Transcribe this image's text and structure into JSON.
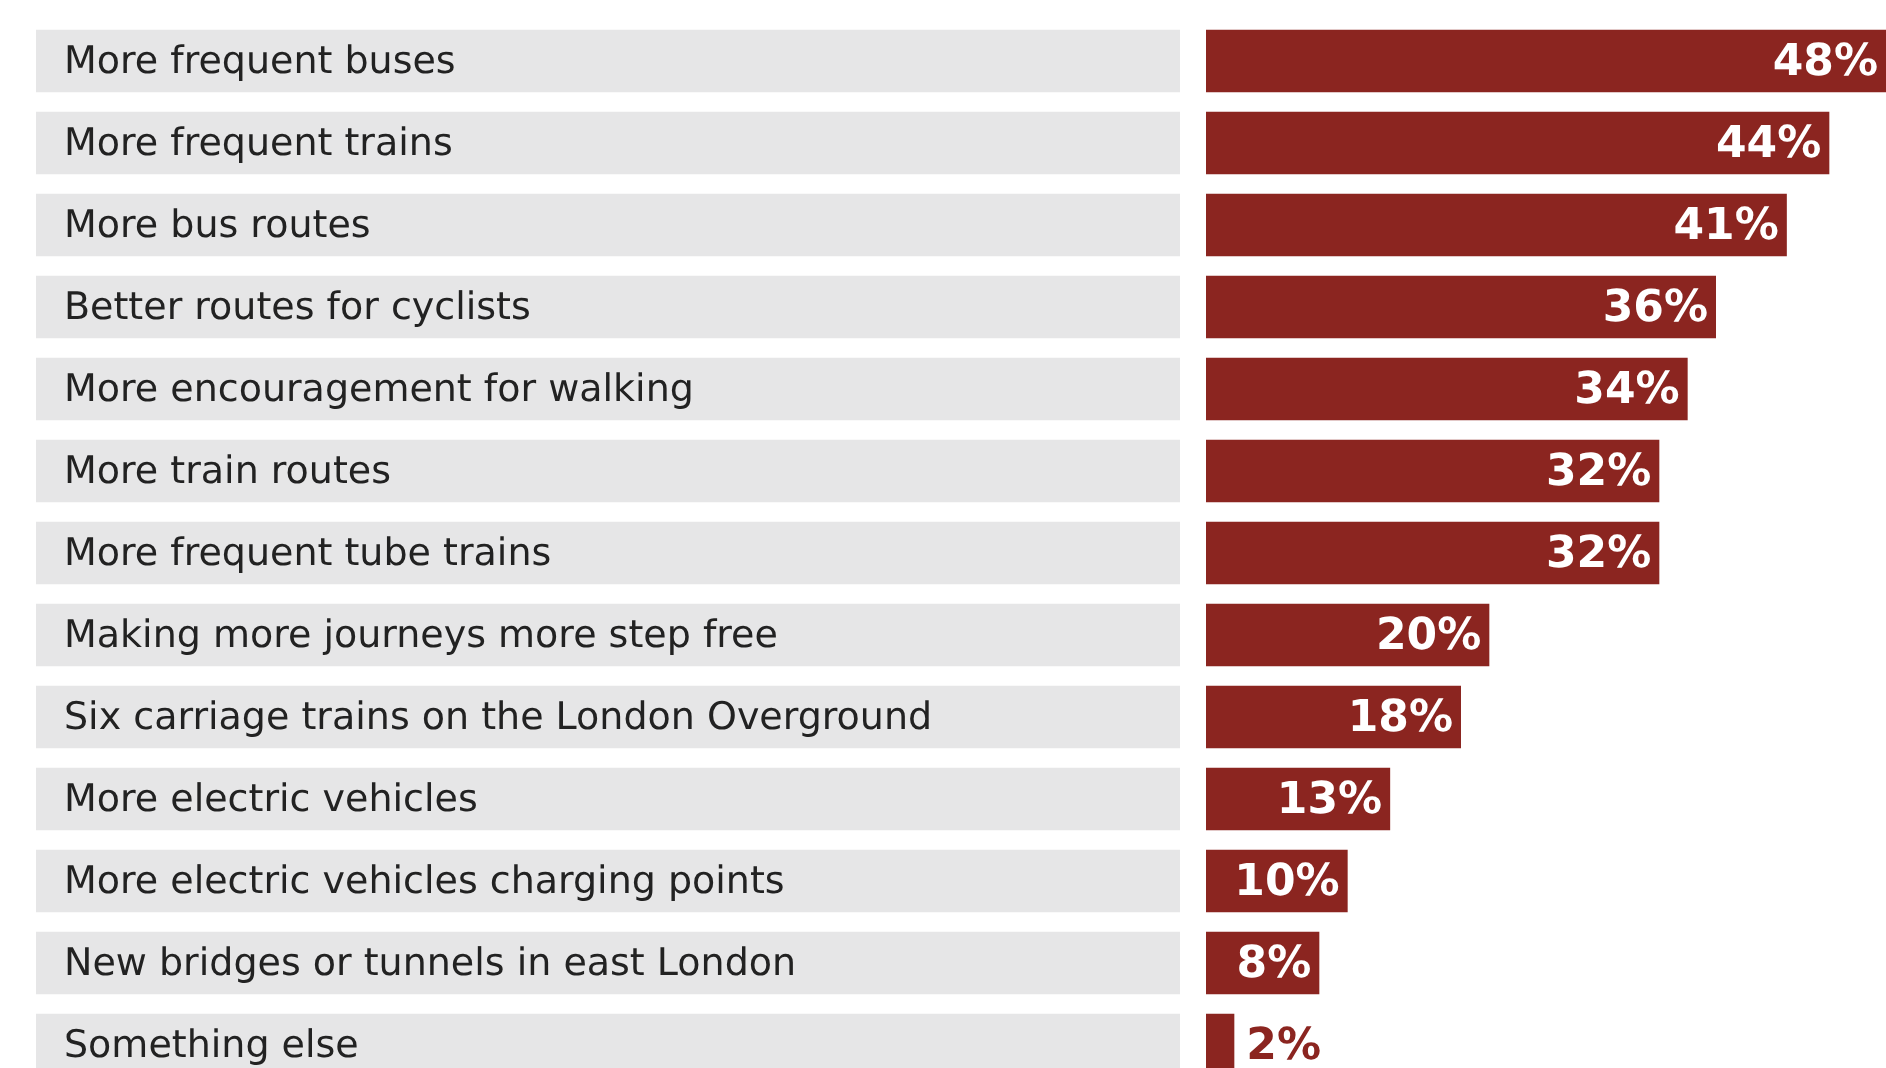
{
  "chart_data": {
    "type": "bar",
    "orientation": "horizontal",
    "color": "#8b2520",
    "categories": [
      "More frequent buses",
      "More frequent trains",
      "More bus routes",
      "Better routes for cyclists",
      "More encouragement for walking",
      "More train routes",
      "More frequent tube trains",
      "Making more journeys more step free",
      "Six carriage trains on the London Overground",
      "More electric vehicles",
      "More electric vehicles charging points",
      "New bridges or tunnels in east London",
      "Something else"
    ],
    "values": [
      48,
      44,
      41,
      36,
      34,
      32,
      32,
      20,
      18,
      13,
      10,
      8,
      2
    ],
    "value_labels": [
      "48%",
      "44%",
      "41%",
      "36%",
      "34%",
      "32%",
      "32%",
      "20%",
      "18%",
      "13%",
      "10%",
      "8%",
      "2%"
    ]
  }
}
